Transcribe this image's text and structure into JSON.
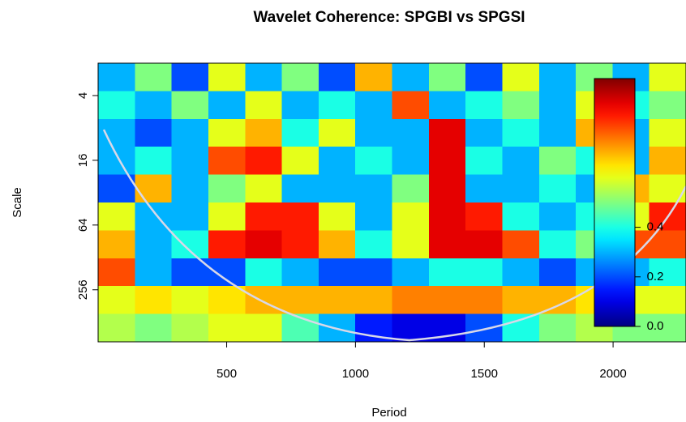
{
  "chart_data": {
    "type": "heatmap",
    "title": "Wavelet Coherence: SPGBI vs SPGSI",
    "x_label": "Period",
    "y_label": "Scale",
    "xlim": [
      1,
      2283
    ],
    "xticks": [
      500,
      1000,
      1500,
      2000
    ],
    "ylim": [
      2,
      780
    ],
    "yticks": [
      4,
      16,
      64,
      256
    ],
    "y_log": true,
    "y_reversed": true,
    "colormap": "jet",
    "zlim": [
      0,
      1
    ],
    "zticks": [
      {
        "value": 0,
        "label": "0.0"
      },
      {
        "value": 0.2,
        "label": "0.2"
      },
      {
        "value": 0.4,
        "label": "0.4"
      }
    ],
    "z": [
      [
        0.3,
        0.5,
        0.2,
        0.6,
        0.3,
        0.5,
        0.2,
        0.7,
        0.3,
        0.5,
        0.2,
        0.6,
        0.3,
        0.5,
        0.3,
        0.6
      ],
      [
        0.4,
        0.3,
        0.5,
        0.3,
        0.6,
        0.3,
        0.4,
        0.3,
        0.8,
        0.3,
        0.4,
        0.5,
        0.3,
        0.6,
        0.4,
        0.5
      ],
      [
        0.3,
        0.2,
        0.3,
        0.6,
        0.7,
        0.4,
        0.6,
        0.3,
        0.3,
        0.9,
        0.3,
        0.4,
        0.3,
        0.7,
        0.3,
        0.6
      ],
      [
        0.3,
        0.4,
        0.3,
        0.8,
        0.85,
        0.6,
        0.3,
        0.4,
        0.3,
        0.9,
        0.4,
        0.3,
        0.5,
        0.4,
        0.3,
        0.7
      ],
      [
        0.2,
        0.7,
        0.3,
        0.5,
        0.6,
        0.3,
        0.3,
        0.3,
        0.5,
        0.9,
        0.3,
        0.3,
        0.4,
        0.3,
        0.7,
        0.6
      ],
      [
        0.6,
        0.3,
        0.3,
        0.6,
        0.85,
        0.85,
        0.6,
        0.3,
        0.6,
        0.9,
        0.85,
        0.4,
        0.3,
        0.4,
        0.6,
        0.85
      ],
      [
        0.7,
        0.3,
        0.4,
        0.85,
        0.9,
        0.85,
        0.7,
        0.4,
        0.6,
        0.9,
        0.9,
        0.8,
        0.4,
        0.5,
        0.8,
        0.8
      ],
      [
        0.8,
        0.3,
        0.2,
        0.2,
        0.4,
        0.3,
        0.2,
        0.2,
        0.3,
        0.4,
        0.4,
        0.3,
        0.2,
        0.3,
        0.3,
        0.4
      ],
      [
        0.6,
        0.65,
        0.6,
        0.65,
        0.7,
        0.7,
        0.7,
        0.7,
        0.75,
        0.75,
        0.75,
        0.7,
        0.7,
        0.65,
        0.6,
        0.6
      ],
      [
        0.55,
        0.5,
        0.55,
        0.6,
        0.6,
        0.45,
        0.3,
        0.15,
        0.1,
        0.1,
        0.2,
        0.4,
        0.5,
        0.55,
        0.5,
        0.5
      ]
    ]
  }
}
